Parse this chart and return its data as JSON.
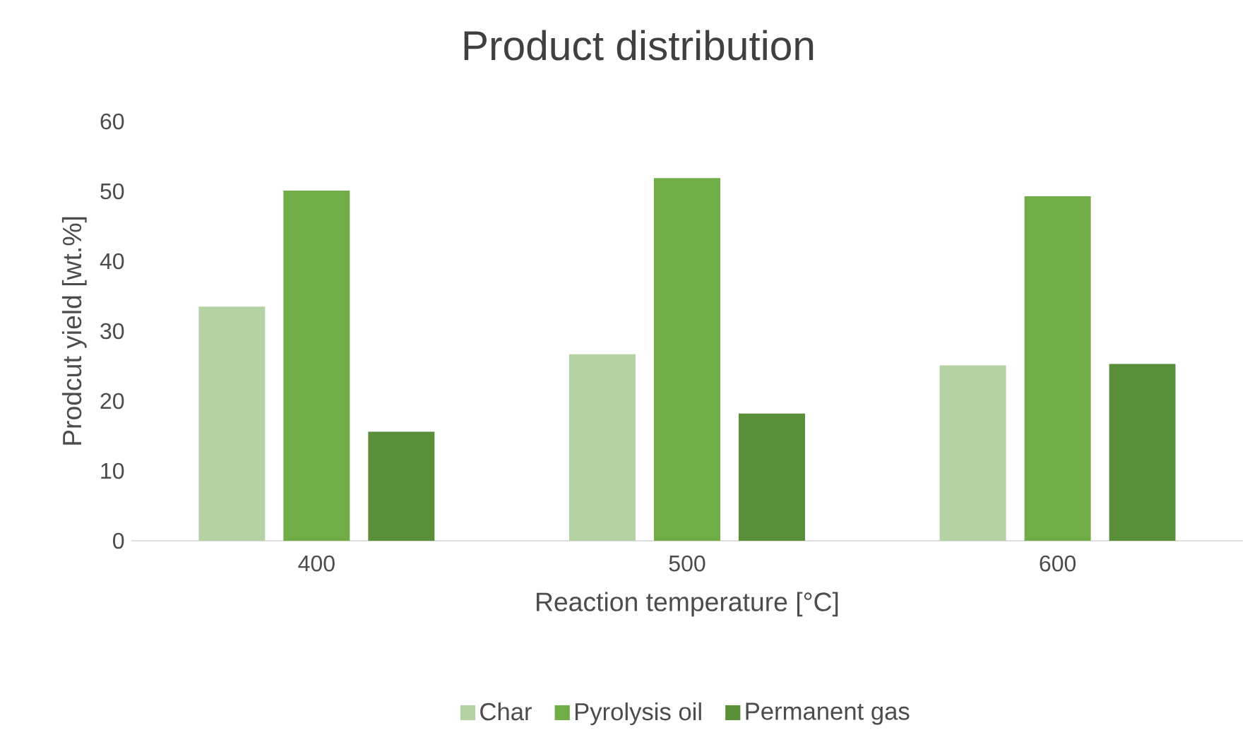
{
  "chart_data": {
    "type": "bar",
    "title": "Product distribution",
    "xlabel": "Reaction temperature [°C]",
    "ylabel": "Prodcut yield [wt.%]",
    "categories": [
      "400",
      "500",
      "600"
    ],
    "series": [
      {
        "name": "Char",
        "color": "#b5d2a5",
        "values": [
          33.5,
          26.7,
          25.1
        ]
      },
      {
        "name": "Pyrolysis oil",
        "color": "#70ad47",
        "values": [
          50.1,
          51.9,
          49.3
        ]
      },
      {
        "name": "Permanent gas",
        "color": "#5a8f3a",
        "values": [
          15.6,
          18.2,
          25.3
        ]
      }
    ],
    "ylim": [
      0,
      60
    ],
    "yticks": [
      0,
      10,
      20,
      30,
      40,
      50,
      60
    ],
    "legend": "bottom"
  }
}
